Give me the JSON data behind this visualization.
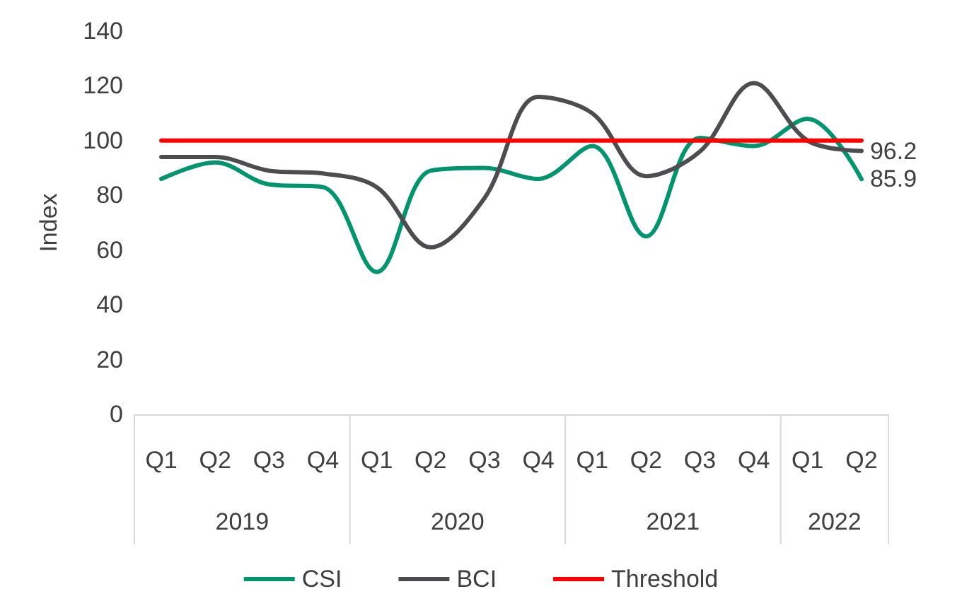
{
  "chart_data": {
    "type": "line",
    "ylabel": "Index",
    "categories": [
      "Q1",
      "Q2",
      "Q3",
      "Q4",
      "Q1",
      "Q2",
      "Q3",
      "Q4",
      "Q1",
      "Q2",
      "Q3",
      "Q4",
      "Q1",
      "Q2"
    ],
    "annotations": [
      "2019",
      "2020",
      "2021",
      "2022"
    ],
    "series": [
      {
        "name": "CSI",
        "color": "#00956e",
        "values": [
          86,
          92,
          84,
          83,
          52,
          89,
          90,
          86,
          98,
          65,
          101,
          98,
          108,
          85.9
        ],
        "value_labels": [
          null,
          null,
          null,
          null,
          null,
          null,
          null,
          null,
          null,
          null,
          null,
          null,
          null,
          "85.9"
        ]
      },
      {
        "name": "BCI",
        "color": "#4d4d4f",
        "values": [
          94,
          94,
          89,
          88,
          83,
          61,
          79,
          116,
          110,
          87,
          96,
          121,
          100,
          96.2
        ],
        "value_labels": [
          null,
          null,
          null,
          null,
          null,
          null,
          null,
          null,
          null,
          null,
          null,
          null,
          null,
          "96.2"
        ]
      },
      {
        "name": "Threshold",
        "color": "#ff0000",
        "values": [
          100,
          100,
          100,
          100,
          100,
          100,
          100,
          100,
          100,
          100,
          100,
          100,
          100,
          100
        ]
      }
    ],
    "ylim": [
      0,
      140
    ],
    "yticks": [
      0,
      20,
      40,
      60,
      80,
      100,
      120,
      140
    ],
    "grid": false,
    "legend": "bottom",
    "marker": "none",
    "line_style": "solid"
  }
}
